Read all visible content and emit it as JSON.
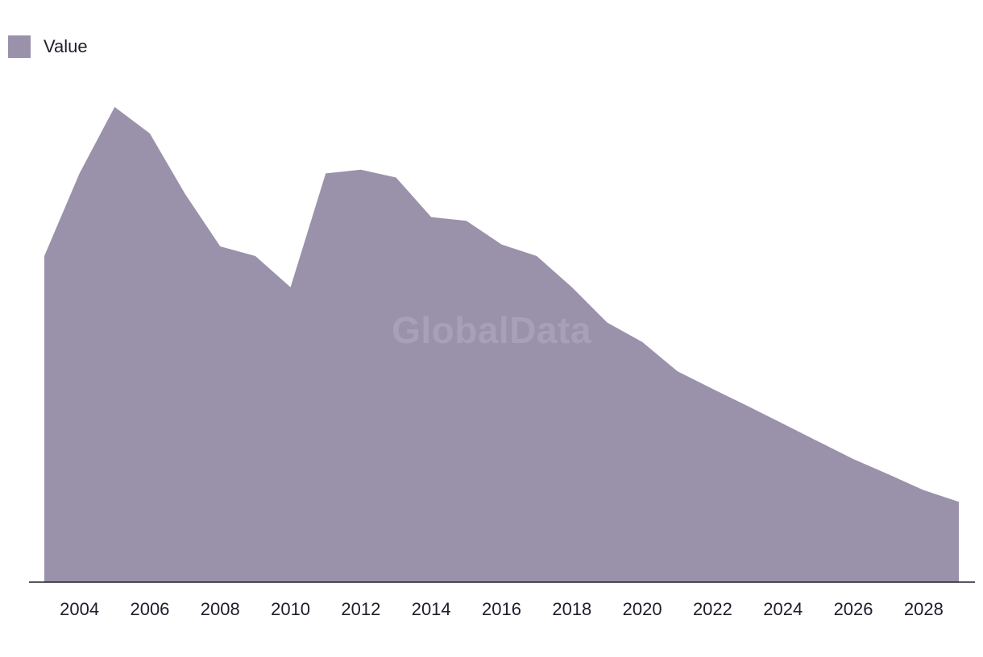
{
  "legend": {
    "label": "Value",
    "swatch_color": "#9a91aa"
  },
  "watermark": "GlobalData",
  "chart_data": {
    "type": "area",
    "title": "",
    "xlabel": "",
    "ylabel": "",
    "x": [
      2003,
      2004,
      2005,
      2006,
      2007,
      2008,
      2009,
      2010,
      2011,
      2012,
      2013,
      2014,
      2015,
      2016,
      2017,
      2018,
      2019,
      2020,
      2021,
      2022,
      2023,
      2024,
      2025,
      2026,
      2027,
      2028,
      2029
    ],
    "x_tick_labels": [
      "2004",
      "2006",
      "2008",
      "2010",
      "2012",
      "2014",
      "2016",
      "2018",
      "2020",
      "2022",
      "2024",
      "2026",
      "2028"
    ],
    "series": [
      {
        "name": "Value",
        "color": "#9a91aa",
        "values": [
          67.2,
          85.0,
          99.3,
          93.6,
          80.6,
          69.3,
          67.2,
          60.5,
          85.0,
          85.8,
          84.1,
          75.6,
          74.8,
          69.7,
          67.2,
          60.5,
          52.9,
          48.7,
          42.4,
          38.6,
          34.9,
          31.1,
          27.3,
          23.5,
          20.2,
          16.8,
          14.3
        ]
      }
    ],
    "ylim": [
      -3,
      105
    ],
    "grid": false,
    "legend_position": "top-left",
    "y_axis_visible": false
  }
}
